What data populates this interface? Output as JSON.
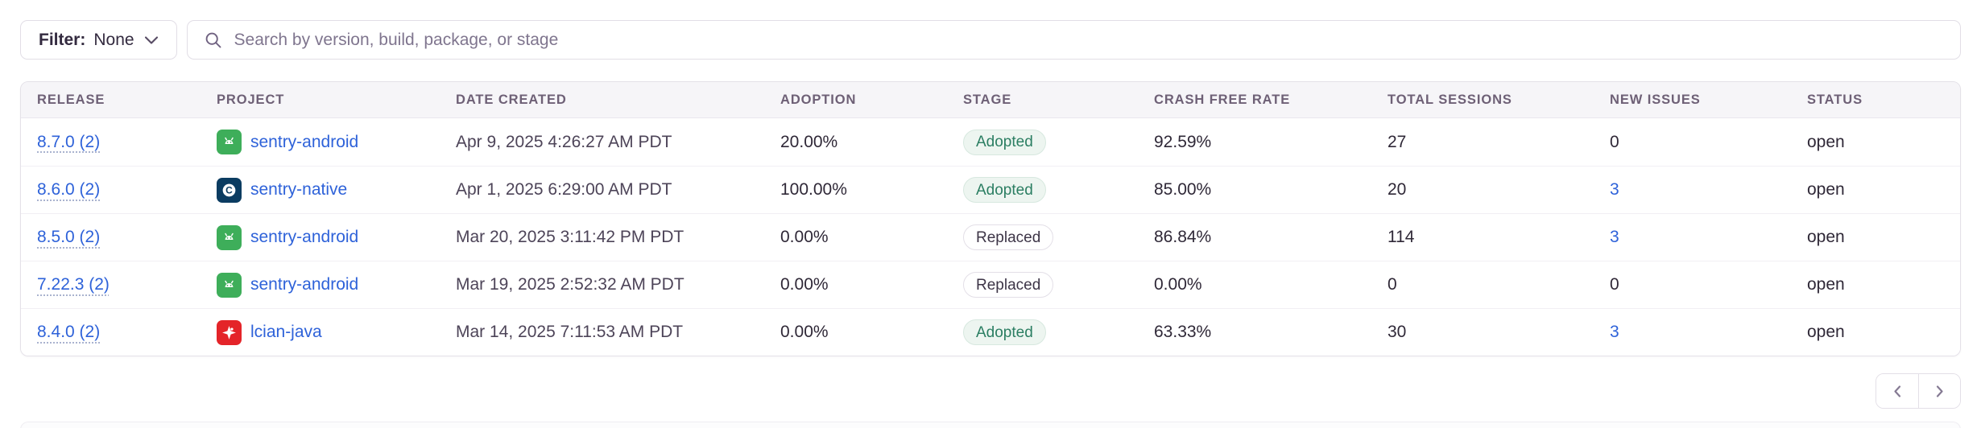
{
  "filter": {
    "label": "Filter:",
    "value": "None"
  },
  "search": {
    "placeholder": "Search by version, build, package, or stage"
  },
  "table": {
    "columns": [
      {
        "id": "release",
        "label": "RELEASE"
      },
      {
        "id": "project",
        "label": "PROJECT"
      },
      {
        "id": "date-created",
        "label": "DATE CREATED"
      },
      {
        "id": "adoption",
        "label": "ADOPTION"
      },
      {
        "id": "stage",
        "label": "STAGE"
      },
      {
        "id": "crash-free-rate",
        "label": "CRASH FREE RATE"
      },
      {
        "id": "total-sessions",
        "label": "TOTAL SESSIONS"
      },
      {
        "id": "new-issues",
        "label": "NEW ISSUES"
      },
      {
        "id": "status",
        "label": "STATUS"
      }
    ],
    "rows": [
      {
        "release": "8.7.0 (2)",
        "project": "sentry-android",
        "platform_icon": "android-icon",
        "date_created": "Apr 9, 2025 4:26:27 AM PDT",
        "adoption": "20.00%",
        "stage": "Adopted",
        "crash_free_rate": "92.59%",
        "total_sessions": "27",
        "new_issues": "0",
        "new_issues_is_link": false,
        "status": "open"
      },
      {
        "release": "8.6.0 (2)",
        "project": "sentry-native",
        "platform_icon": "c-icon",
        "date_created": "Apr 1, 2025 6:29:00 AM PDT",
        "adoption": "100.00%",
        "stage": "Adopted",
        "crash_free_rate": "85.00%",
        "total_sessions": "20",
        "new_issues": "3",
        "new_issues_is_link": true,
        "status": "open"
      },
      {
        "release": "8.5.0 (2)",
        "project": "sentry-android",
        "platform_icon": "android-icon",
        "date_created": "Mar 20, 2025 3:11:42 PM PDT",
        "adoption": "0.00%",
        "stage": "Replaced",
        "crash_free_rate": "86.84%",
        "total_sessions": "114",
        "new_issues": "3",
        "new_issues_is_link": true,
        "status": "open"
      },
      {
        "release": "7.22.3 (2)",
        "project": "sentry-android",
        "platform_icon": "android-icon",
        "date_created": "Mar 19, 2025 2:52:32 AM PDT",
        "adoption": "0.00%",
        "stage": "Replaced",
        "crash_free_rate": "0.00%",
        "total_sessions": "0",
        "new_issues": "0",
        "new_issues_is_link": false,
        "status": "open"
      },
      {
        "release": "8.4.0 (2)",
        "project": "lcian-java",
        "platform_icon": "java-icon",
        "date_created": "Mar 14, 2025 7:11:53 AM PDT",
        "adoption": "0.00%",
        "stage": "Adopted",
        "crash_free_rate": "63.33%",
        "total_sessions": "30",
        "new_issues": "3",
        "new_issues_is_link": true,
        "status": "open"
      }
    ]
  },
  "pagination": {
    "previous_icon": "chevron-left-icon",
    "next_icon": "chevron-right-icon"
  },
  "colors": {
    "link_blue": "#2e62d9",
    "adopted_green": "#2b7e62",
    "android_green": "#3eae5a",
    "native_navy": "#0b3c61",
    "java_red": "#e42429",
    "header_text": "#6e6076"
  }
}
